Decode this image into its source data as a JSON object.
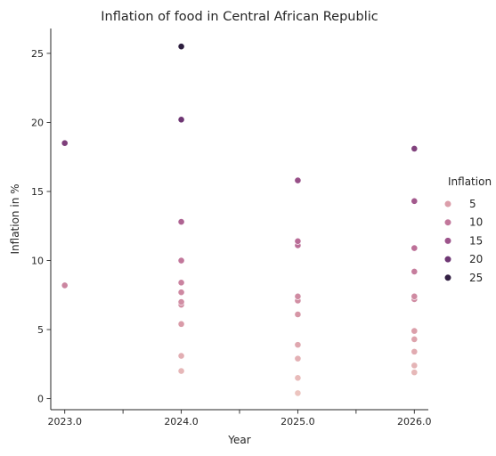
{
  "chart_data": {
    "type": "scatter",
    "title": "Inflation of food in Central African Republic",
    "xlabel": "Year",
    "ylabel": "Inflation in %",
    "xlim": [
      2022.88,
      2026.12
    ],
    "ylim": [
      -0.8,
      26.8
    ],
    "xticks": [
      2023.0,
      2023.5,
      2024.0,
      2024.5,
      2025.0,
      2025.5,
      2026.0
    ],
    "xtick_labels": [
      "2023.0",
      "",
      "2024.0",
      "",
      "2025.0",
      "",
      "2026.0"
    ],
    "yticks": [
      0,
      5,
      10,
      15,
      20,
      25
    ],
    "ytick_labels": [
      "0",
      "5",
      "10",
      "15",
      "20",
      "25"
    ],
    "grid": false,
    "legend": {
      "title": "Inflation",
      "placement": "right",
      "entries": [
        {
          "label": "5",
          "value": 5
        },
        {
          "label": "10",
          "value": 10
        },
        {
          "label": "15",
          "value": 15
        },
        {
          "label": "20",
          "value": 20
        },
        {
          "label": "25",
          "value": 25
        }
      ]
    },
    "color_scale": {
      "min": 0.4,
      "max": 25.5,
      "stops": [
        "#ecc4bf",
        "#d99ba8",
        "#c0739a",
        "#9a5189",
        "#6b3472",
        "#2d1e3e"
      ]
    },
    "points": [
      {
        "x": 2023.0,
        "y": 18.5
      },
      {
        "x": 2023.0,
        "y": 8.2
      },
      {
        "x": 2024.0,
        "y": 25.5
      },
      {
        "x": 2024.0,
        "y": 20.2
      },
      {
        "x": 2024.0,
        "y": 12.8
      },
      {
        "x": 2024.0,
        "y": 10.0
      },
      {
        "x": 2024.0,
        "y": 8.4
      },
      {
        "x": 2024.0,
        "y": 7.7
      },
      {
        "x": 2024.0,
        "y": 7.0
      },
      {
        "x": 2024.0,
        "y": 6.8
      },
      {
        "x": 2024.0,
        "y": 5.4
      },
      {
        "x": 2024.0,
        "y": 3.1
      },
      {
        "x": 2024.0,
        "y": 2.0
      },
      {
        "x": 2025.0,
        "y": 15.8
      },
      {
        "x": 2025.0,
        "y": 11.4
      },
      {
        "x": 2025.0,
        "y": 11.1
      },
      {
        "x": 2025.0,
        "y": 7.4
      },
      {
        "x": 2025.0,
        "y": 7.1
      },
      {
        "x": 2025.0,
        "y": 6.1
      },
      {
        "x": 2025.0,
        "y": 3.9
      },
      {
        "x": 2025.0,
        "y": 2.9
      },
      {
        "x": 2025.0,
        "y": 1.5
      },
      {
        "x": 2025.0,
        "y": 0.4
      },
      {
        "x": 2026.0,
        "y": 18.1
      },
      {
        "x": 2026.0,
        "y": 14.3
      },
      {
        "x": 2026.0,
        "y": 10.9
      },
      {
        "x": 2026.0,
        "y": 9.2
      },
      {
        "x": 2026.0,
        "y": 7.4
      },
      {
        "x": 2026.0,
        "y": 7.2
      },
      {
        "x": 2026.0,
        "y": 4.9
      },
      {
        "x": 2026.0,
        "y": 4.3
      },
      {
        "x": 2026.0,
        "y": 3.4
      },
      {
        "x": 2026.0,
        "y": 2.4
      },
      {
        "x": 2026.0,
        "y": 1.9
      }
    ]
  }
}
